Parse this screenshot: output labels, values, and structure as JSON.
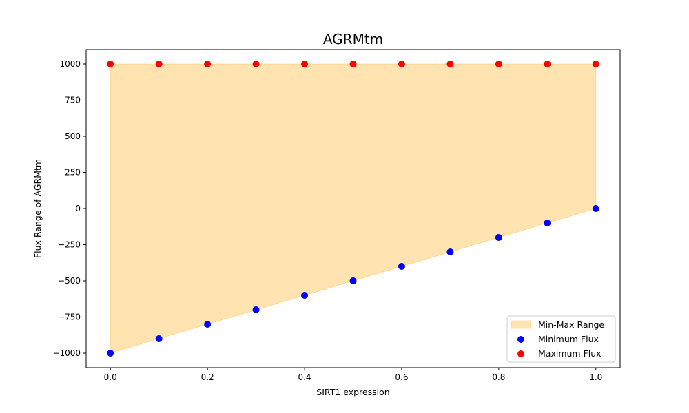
{
  "chart_data": {
    "type": "scatter",
    "title": "AGRMtm",
    "xlabel": "SIRT1 expression",
    "ylabel": "Flux Range of AGRMtm",
    "xlim": [
      -0.05,
      1.05
    ],
    "ylim": [
      -1100,
      1100
    ],
    "x_ticks": [
      0.0,
      0.2,
      0.4,
      0.6,
      0.8,
      1.0
    ],
    "x_tick_labels": [
      "0.0",
      "0.2",
      "0.4",
      "0.6",
      "0.8",
      "1.0"
    ],
    "y_ticks": [
      -1000,
      -750,
      -500,
      -250,
      0,
      250,
      500,
      750,
      1000
    ],
    "y_tick_labels": [
      "−1000",
      "−750",
      "−500",
      "−250",
      "0",
      "250",
      "500",
      "750",
      "1000"
    ],
    "x": [
      0.0,
      0.1,
      0.2,
      0.3,
      0.4,
      0.5,
      0.6,
      0.7,
      0.8,
      0.9,
      1.0
    ],
    "series": [
      {
        "name": "Minimum Flux",
        "color": "#0000ff",
        "values": [
          -1000,
          -900,
          -800,
          -700,
          -600,
          -500,
          -400,
          -300,
          -200,
          -100,
          0
        ]
      },
      {
        "name": "Maximum Flux",
        "color": "#ff0000",
        "values": [
          1000,
          1000,
          1000,
          1000,
          1000,
          1000,
          1000,
          1000,
          1000,
          1000,
          1000
        ]
      }
    ],
    "fill": {
      "name": "Min-Max Range",
      "color": "#ffa500",
      "opacity": 0.3
    },
    "legend": {
      "position": "lower-right",
      "entries": [
        "Min-Max Range",
        "Minimum Flux",
        "Maximum Flux"
      ]
    },
    "grid": false
  }
}
